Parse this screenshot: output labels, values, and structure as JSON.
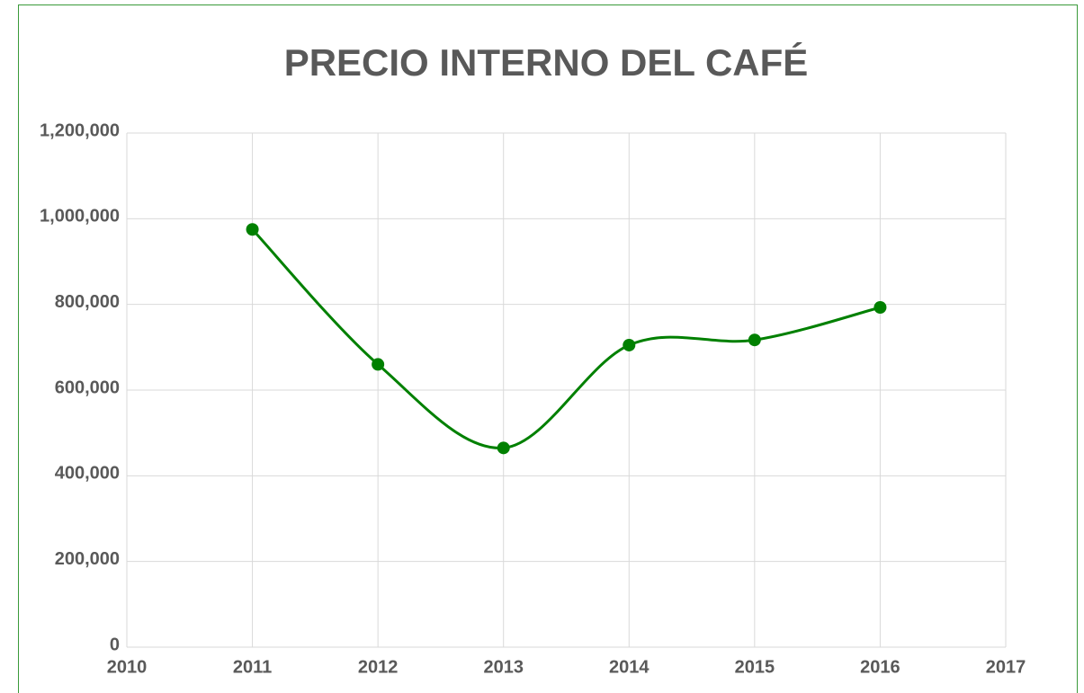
{
  "chart_data": {
    "type": "line",
    "title": "PRECIO INTERNO DEL CAFÉ",
    "x": [
      2011,
      2012,
      2013,
      2014,
      2015,
      2016
    ],
    "series": [
      {
        "color": "#008000",
        "values": [
          975000,
          660000,
          465000,
          705000,
          717000,
          793000
        ]
      }
    ],
    "xlim": [
      2010,
      2017
    ],
    "xticks": [
      2010,
      2011,
      2012,
      2013,
      2014,
      2015,
      2016,
      2017
    ],
    "ylim": [
      0,
      1200000
    ],
    "yticks": [
      0,
      {
        "value": 200000,
        "label": "200,000"
      },
      {
        "value": 400000,
        "label": "400,000"
      },
      {
        "value": 600000,
        "label": "600,000"
      },
      {
        "value": 800000,
        "label": "800,000"
      },
      {
        "value": 1000000,
        "label": "1,000,000"
      },
      {
        "value": 1200000,
        "label": "1,200,000"
      }
    ],
    "grid": true,
    "smooth": true,
    "markers": true
  }
}
